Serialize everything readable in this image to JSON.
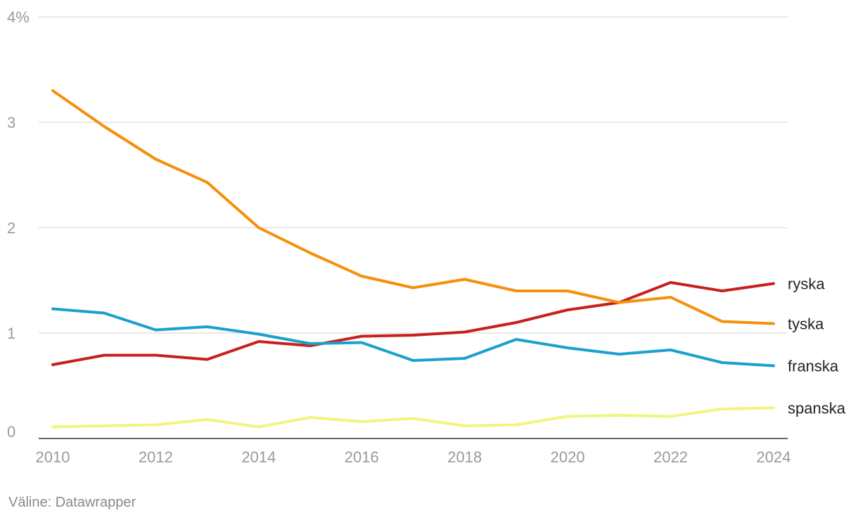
{
  "chart_data": {
    "type": "line",
    "title": "",
    "xlabel": "",
    "ylabel": "",
    "x": [
      2010,
      2011,
      2012,
      2013,
      2014,
      2015,
      2016,
      2017,
      2018,
      2019,
      2020,
      2021,
      2022,
      2023,
      2024
    ],
    "x_ticks": [
      "2010",
      "2012",
      "2014",
      "2016",
      "2018",
      "2020",
      "2022",
      "2024"
    ],
    "y_ticks": [
      0,
      1,
      2,
      3,
      4
    ],
    "y_tick_labels": [
      "0",
      "1",
      "2",
      "3",
      "4%"
    ],
    "ylim": [
      0,
      4
    ],
    "grid": true,
    "legend": "direct labels at line ends (right)",
    "series": [
      {
        "name": "ryska",
        "color": "#c7201f",
        "values": [
          0.7,
          0.79,
          0.79,
          0.75,
          0.92,
          0.88,
          0.97,
          0.98,
          1.01,
          1.1,
          1.22,
          1.29,
          1.48,
          1.4,
          1.47
        ]
      },
      {
        "name": "tyska",
        "color": "#f5900b",
        "values": [
          3.3,
          2.96,
          2.65,
          2.43,
          2.0,
          1.76,
          1.54,
          1.43,
          1.51,
          1.4,
          1.4,
          1.29,
          1.34,
          1.11,
          1.09
        ]
      },
      {
        "name": "franska",
        "color": "#1aa1cc",
        "values": [
          1.23,
          1.19,
          1.03,
          1.06,
          0.99,
          0.9,
          0.91,
          0.74,
          0.76,
          0.94,
          0.86,
          0.8,
          0.84,
          0.72,
          0.69
        ]
      },
      {
        "name": "spanska",
        "color": "#f0f67c",
        "values": [
          0.11,
          0.12,
          0.13,
          0.18,
          0.11,
          0.2,
          0.16,
          0.19,
          0.12,
          0.13,
          0.21,
          0.22,
          0.21,
          0.28,
          0.29
        ]
      }
    ]
  },
  "source": "Väline: Datawrapper"
}
